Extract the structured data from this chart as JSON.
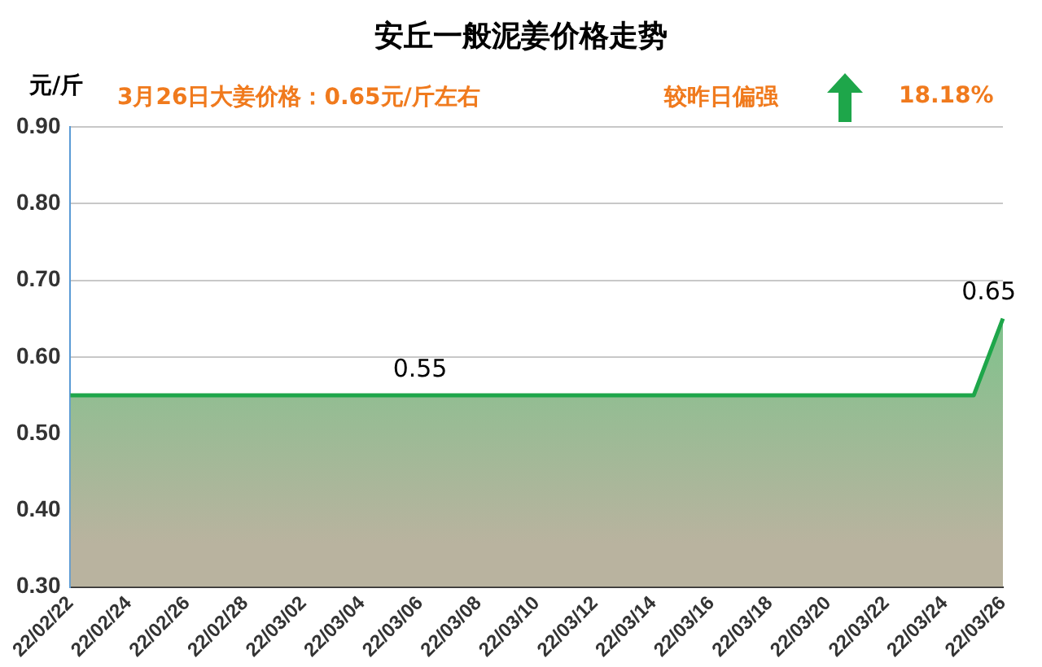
{
  "chart_data": {
    "type": "area",
    "title": "安丘一般泥姜价格走势",
    "ylabel": "元/斤",
    "annotations": [
      "3月26日大姜价格：0.65元/斤左右",
      "较昨日偏强",
      "18.18%"
    ],
    "categories": [
      "22/02/22",
      null,
      "22/02/24",
      null,
      "22/02/26",
      null,
      "22/02/28",
      null,
      "22/03/02",
      null,
      "22/03/04",
      null,
      "22/03/06",
      null,
      "22/03/08",
      null,
      "22/03/10",
      null,
      "22/03/12",
      null,
      "22/03/14",
      null,
      "22/03/16",
      null,
      "22/03/18",
      null,
      "22/03/20",
      null,
      "22/03/22",
      null,
      "22/03/24",
      null,
      "22/03/26"
    ],
    "series": [
      {
        "color": "#1ea64a",
        "values": [
          0.55,
          0.55,
          0.55,
          0.55,
          0.55,
          0.55,
          0.55,
          0.55,
          0.55,
          0.55,
          0.55,
          0.55,
          0.55,
          0.55,
          0.55,
          0.55,
          0.55,
          0.55,
          0.55,
          0.55,
          0.55,
          0.55,
          0.55,
          0.55,
          0.55,
          0.55,
          0.55,
          0.55,
          0.55,
          0.55,
          0.55,
          0.55,
          0.65
        ],
        "value_labels": [
          null,
          null,
          null,
          null,
          null,
          null,
          null,
          null,
          null,
          null,
          null,
          null,
          "0.55",
          null,
          null,
          null,
          null,
          null,
          null,
          null,
          null,
          null,
          null,
          null,
          null,
          null,
          null,
          null,
          null,
          null,
          null,
          null,
          "0.65"
        ]
      }
    ],
    "ylim": [
      0.3,
      0.9
    ],
    "yticks": [
      {
        "value": 0.3,
        "label": "0.30"
      },
      {
        "value": 0.4,
        "label": "0.40"
      },
      {
        "value": 0.5,
        "label": "0.50"
      },
      {
        "value": 0.6,
        "label": "0.60"
      },
      {
        "value": 0.7,
        "label": "0.70"
      },
      {
        "value": 0.8,
        "label": "0.80"
      },
      {
        "value": 0.9,
        "label": "0.90"
      }
    ],
    "grid": "y",
    "marker": "none"
  }
}
